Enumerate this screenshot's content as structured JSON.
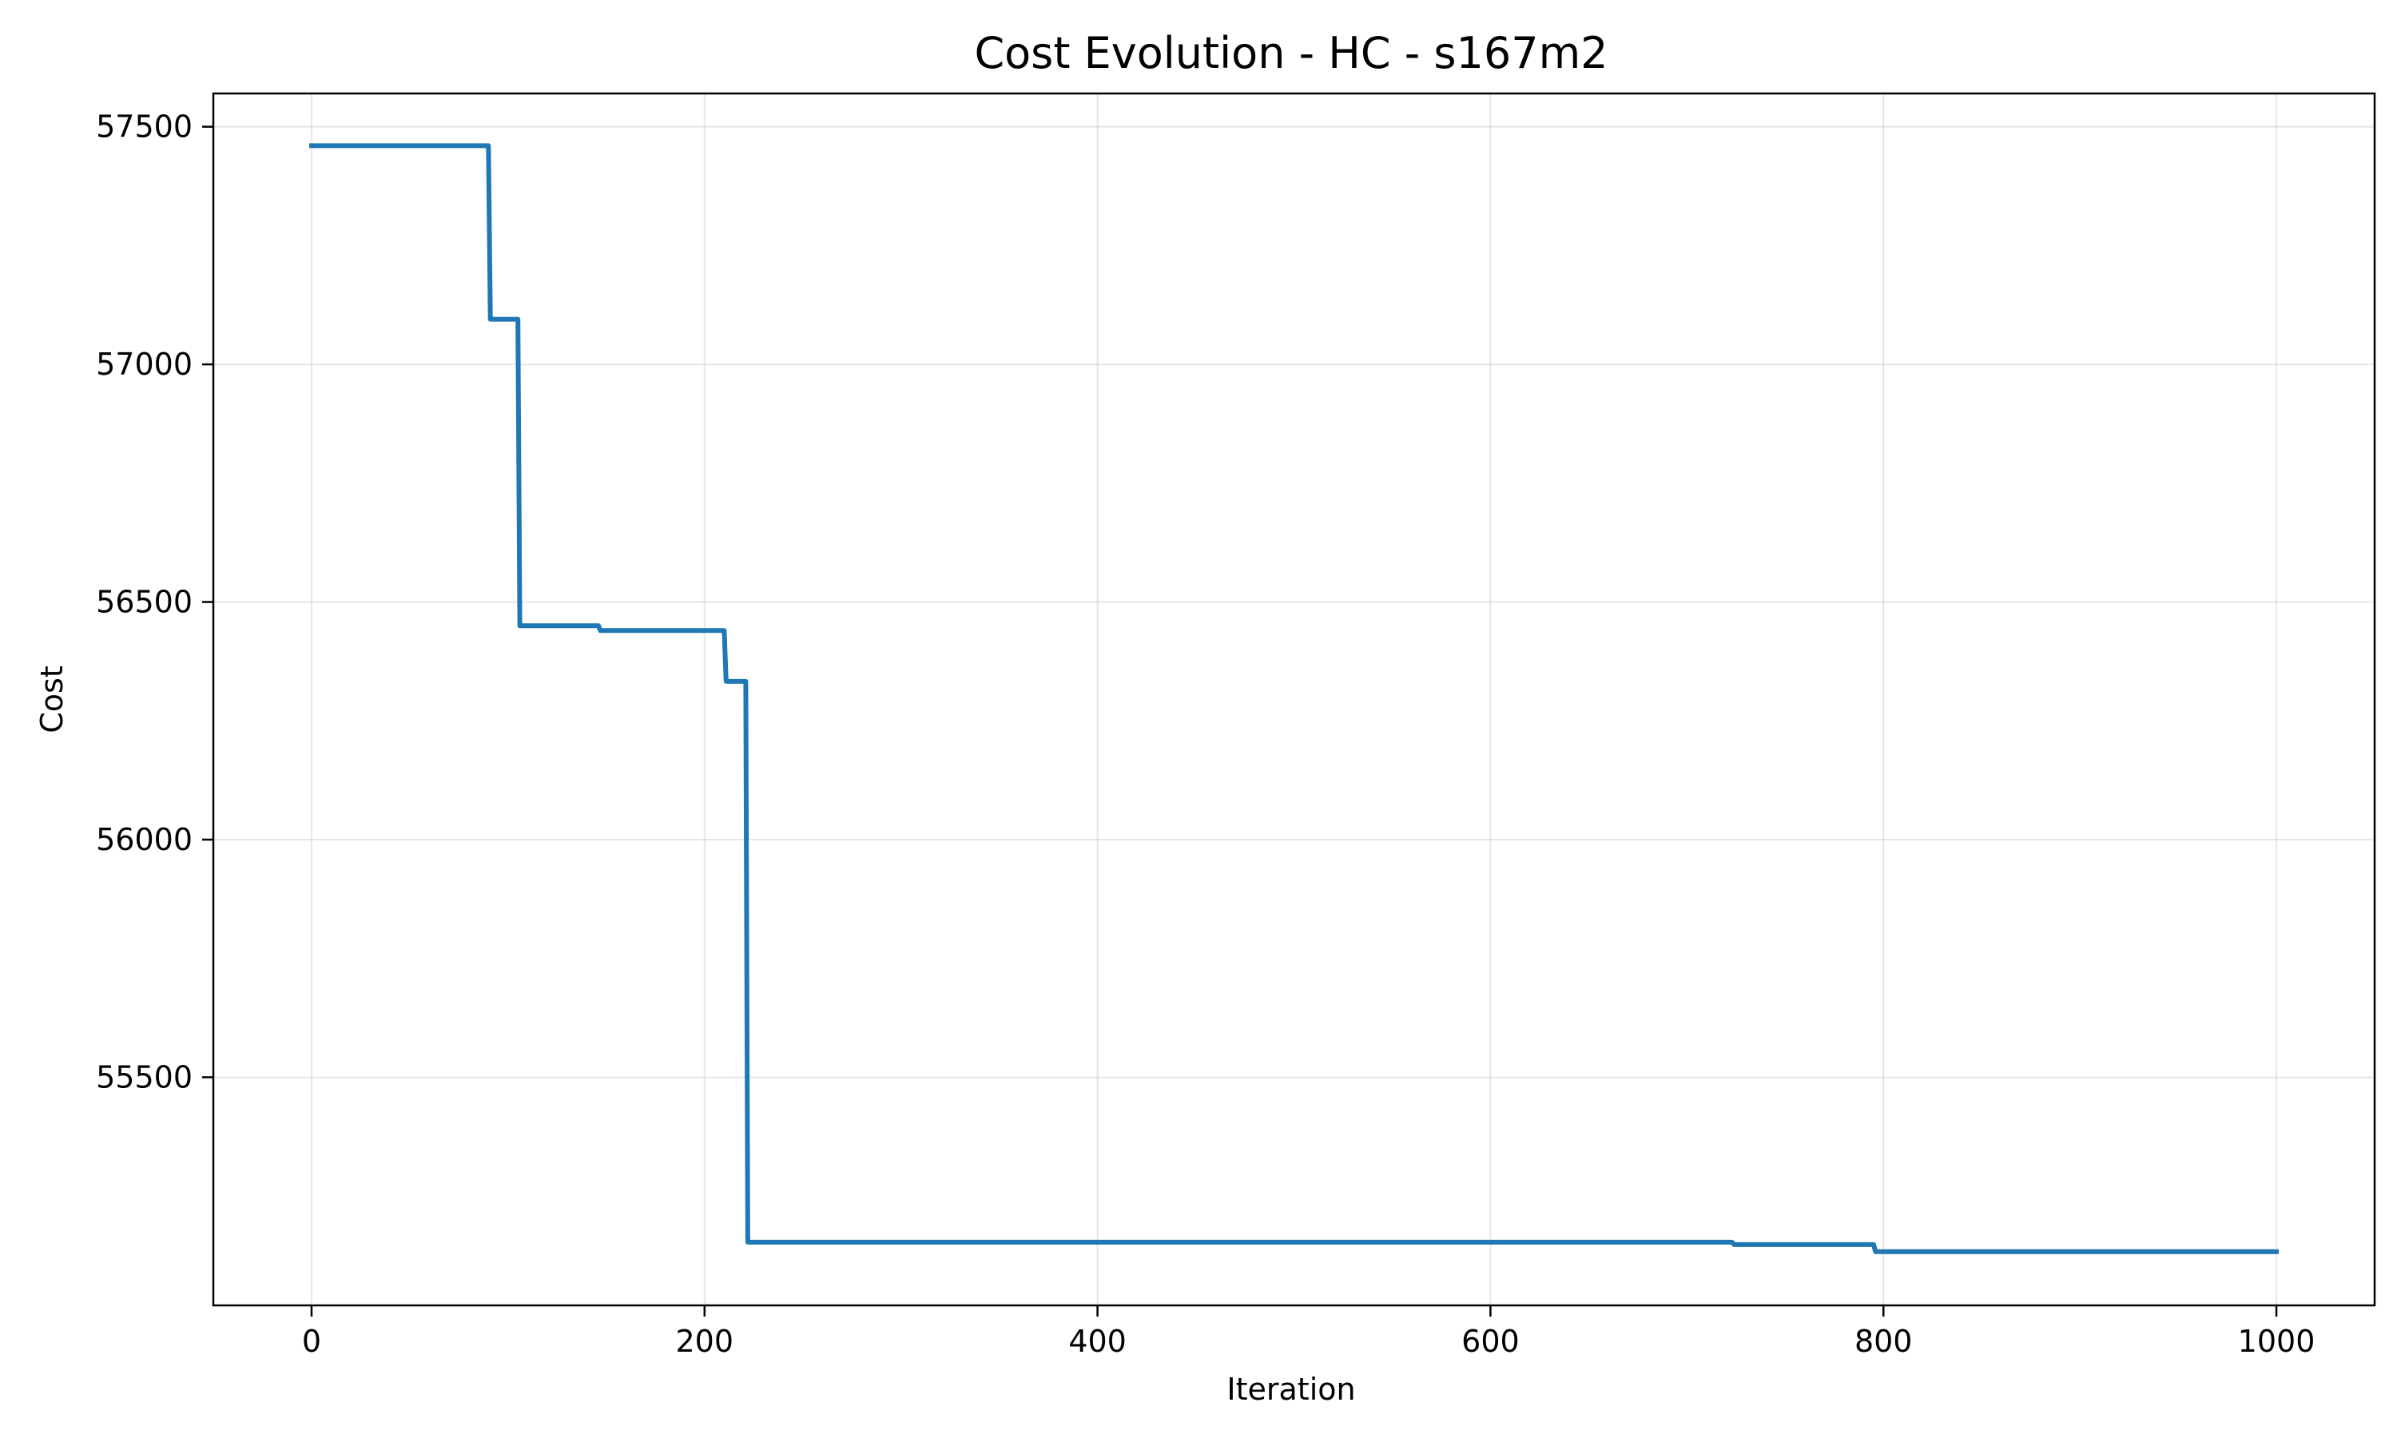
{
  "chart_data": {
    "type": "line",
    "title": "Cost Evolution - HC - s167m2",
    "xlabel": "Iteration",
    "ylabel": "Cost",
    "xlim": [
      -50,
      1050
    ],
    "ylim": [
      55020,
      57570
    ],
    "x_ticks": [
      0,
      200,
      400,
      600,
      800,
      1000
    ],
    "x_tick_labels": [
      "0",
      "200",
      "400",
      "600",
      "800",
      "1000"
    ],
    "y_ticks": [
      55500,
      56000,
      56500,
      57000,
      57500
    ],
    "y_tick_labels": [
      "55500",
      "56000",
      "56500",
      "57000",
      "57500"
    ],
    "grid": true,
    "legend": "none",
    "series": [
      {
        "color": "#1f77b4",
        "points": [
          [
            0,
            57460
          ],
          [
            90,
            57460
          ],
          [
            91,
            57095
          ],
          [
            105,
            57095
          ],
          [
            106,
            56450
          ],
          [
            146,
            56450
          ],
          [
            147,
            56440
          ],
          [
            210,
            56440
          ],
          [
            211,
            56333
          ],
          [
            221,
            56333
          ],
          [
            222,
            55153
          ],
          [
            723,
            55153
          ],
          [
            724,
            55148
          ],
          [
            795,
            55148
          ],
          [
            796,
            55133
          ],
          [
            1000,
            55133
          ]
        ]
      }
    ]
  }
}
